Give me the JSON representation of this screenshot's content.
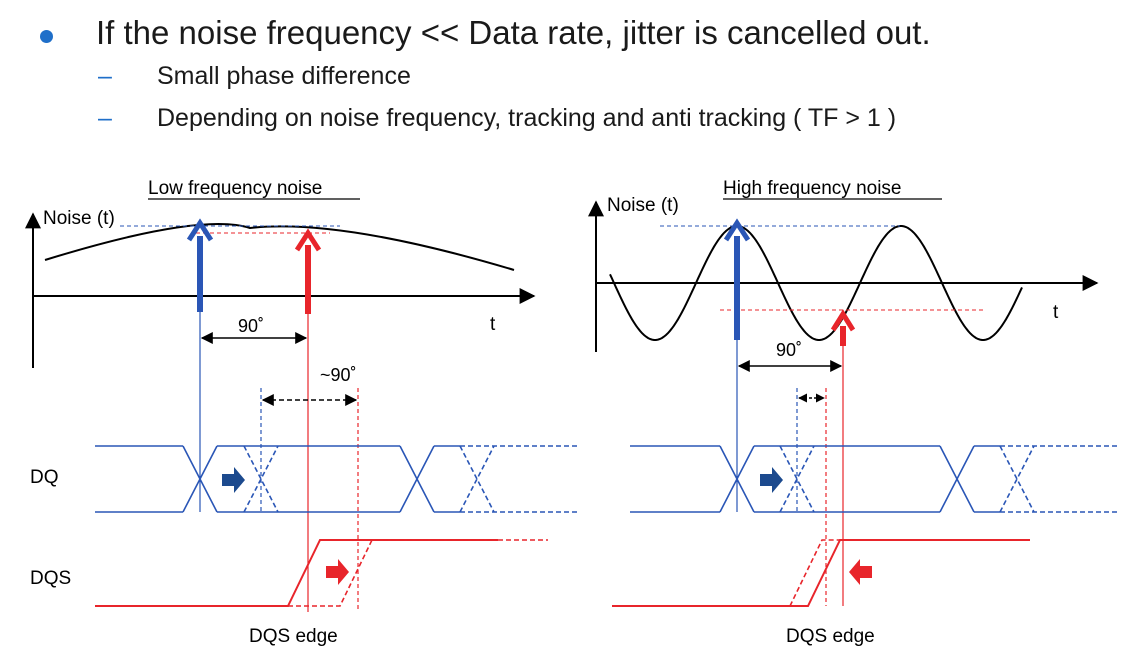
{
  "bullets": {
    "main": "If the noise frequency << Data rate, jitter is cancelled out.",
    "subs": [
      "Small phase difference",
      "Depending on noise frequency, tracking and anti tracking ( TF > 1 )"
    ]
  },
  "left_panel": {
    "title": "Low frequency noise",
    "y_axis_label": "Noise (t)",
    "x_axis_label": "t",
    "phase_label_1": "90˚",
    "phase_label_2": "~90˚",
    "dq_label": "DQ",
    "dqs_label": "DQS",
    "edge_label": "DQS edge"
  },
  "right_panel": {
    "title": "High frequency noise",
    "y_axis_label": "Noise (t)",
    "x_axis_label": "t",
    "phase_label_1": "90˚",
    "edge_label": "DQS edge"
  },
  "colors": {
    "blue": "#2a56b6",
    "red": "#e8252b",
    "dark_blue_arrow": "#1c4a8e",
    "bullet": "#1f6fc9"
  }
}
